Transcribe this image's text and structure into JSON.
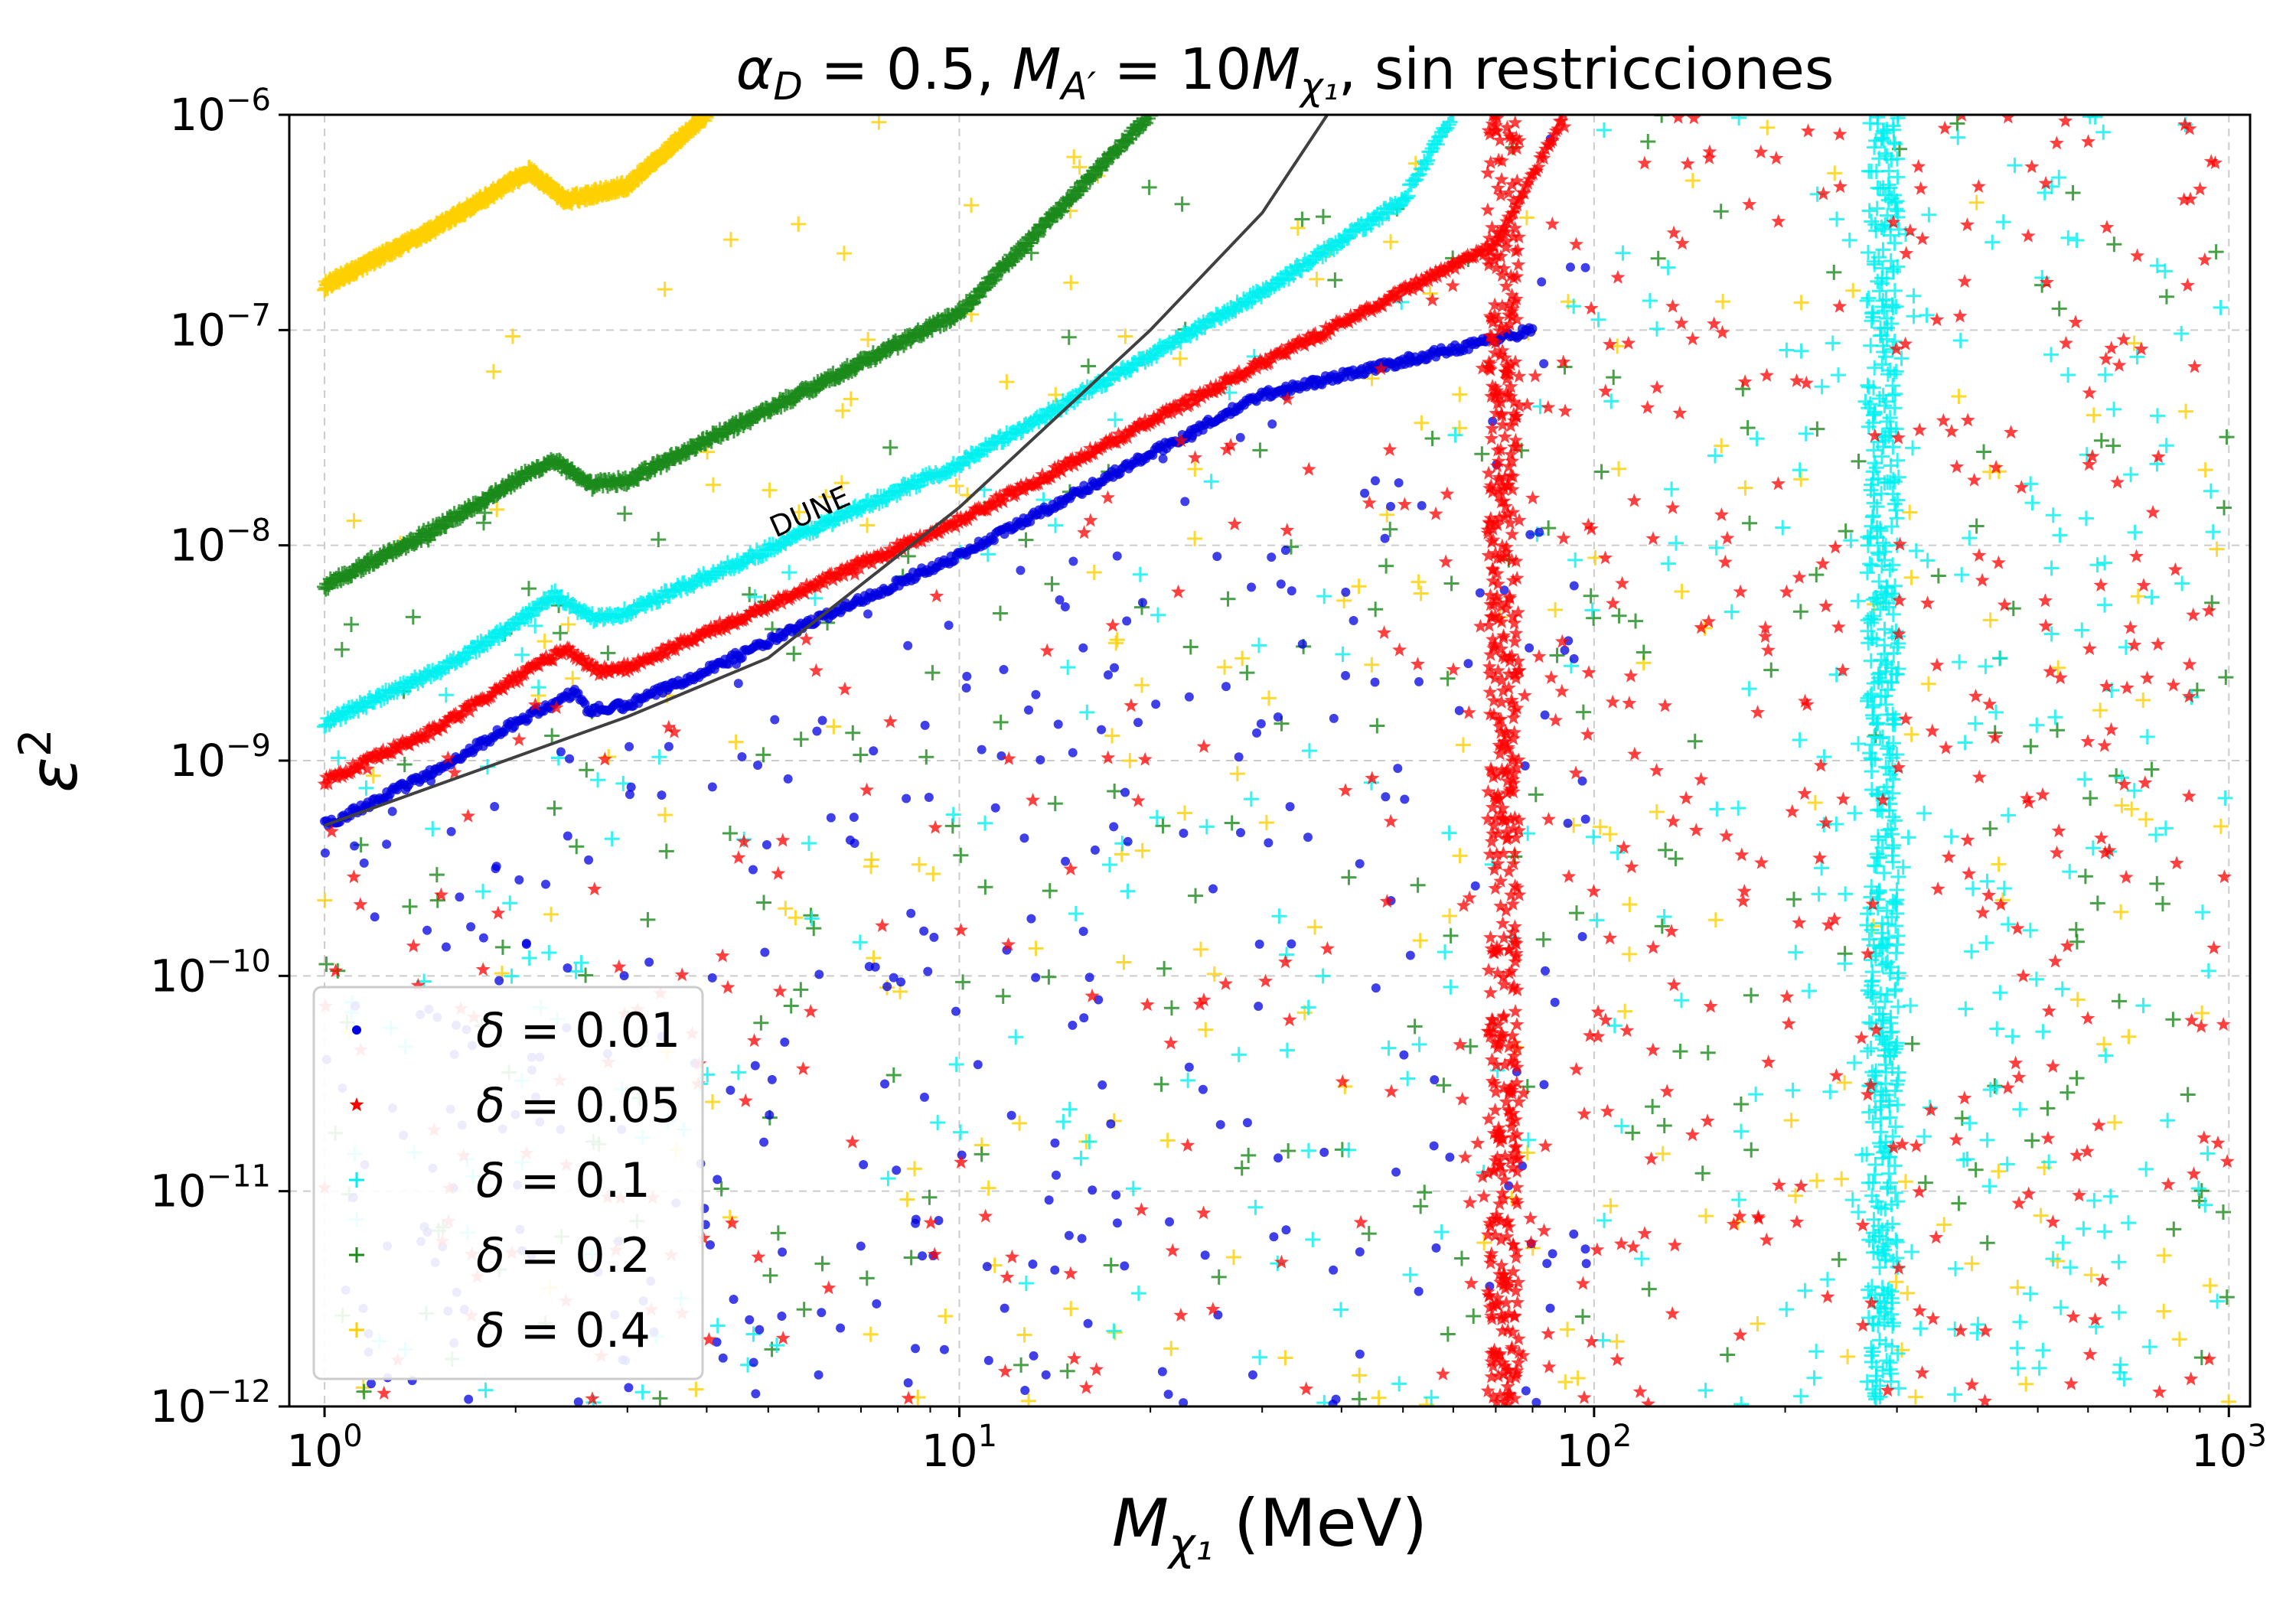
{
  "chart_data": {
    "type": "scatter",
    "title": "α_D = 0.5, M_A′ = 10M_χ₁, sin restricciones",
    "title_parts": {
      "alpha": "α",
      "alpha_sub": "D",
      "eq1": " = 0.5, ",
      "m1": "M",
      "m1_sub": "A′",
      "eq2": " = 10",
      "m2": "M",
      "m2_sub": "χ₁",
      "tail": ", sin restricciones"
    },
    "xlabel": "M_χ₁ (MeV)",
    "xlabel_parts": {
      "m": "M",
      "sub": "χ₁",
      "unit": " (MeV)"
    },
    "ylabel": "ε²",
    "ylabel_parts": {
      "sym": "ε",
      "sup": "2"
    },
    "xscale": "log",
    "yscale": "log",
    "xlim": [
      0.88,
      1080
    ],
    "ylim": [
      1e-12,
      1e-06
    ],
    "x_ticks": [
      {
        "value": 1,
        "base": "10",
        "exp": "0"
      },
      {
        "value": 10,
        "base": "10",
        "exp": "1"
      },
      {
        "value": 100,
        "base": "10",
        "exp": "2"
      },
      {
        "value": 1000,
        "base": "10",
        "exp": "3"
      }
    ],
    "y_ticks": [
      {
        "value": 1e-06,
        "base": "10",
        "exp": "−6"
      },
      {
        "value": 1e-07,
        "base": "10",
        "exp": "−7"
      },
      {
        "value": 1e-08,
        "base": "10",
        "exp": "−8"
      },
      {
        "value": 1e-09,
        "base": "10",
        "exp": "−9"
      },
      {
        "value": 1e-10,
        "base": "10",
        "exp": "−10"
      },
      {
        "value": 1e-11,
        "base": "10",
        "exp": "−11"
      },
      {
        "value": 1e-12,
        "base": "10",
        "exp": "−12"
      }
    ],
    "grid": true,
    "legend_position": "lower-left",
    "series": [
      {
        "name": "δ = 0.01",
        "sym": "δ",
        "val": " = 0.01",
        "marker": "circle",
        "color": "#0000e0",
        "relic_line": [
          [
            1,
            5e-10
          ],
          [
            1.5,
            9e-10
          ],
          [
            2,
            1.5e-09
          ],
          [
            2.5,
            2.1e-09
          ],
          [
            2.6,
            1.7e-09
          ],
          [
            3,
            1.8e-09
          ],
          [
            10,
            9e-09
          ],
          [
            30,
            5e-08
          ],
          [
            80,
            1e-07
          ]
        ],
        "vertical_band_x": null
      },
      {
        "name": "δ = 0.05",
        "sym": "δ",
        "val": " = 0.05",
        "marker": "star",
        "color": "#ff0000",
        "relic_line": [
          [
            1,
            8e-10
          ],
          [
            1.5,
            1.4e-09
          ],
          [
            2,
            2.4e-09
          ],
          [
            2.4,
            3.3e-09
          ],
          [
            2.7,
            2.6e-09
          ],
          [
            3,
            2.7e-09
          ],
          [
            10,
            1.3e-08
          ],
          [
            30,
            7e-08
          ],
          [
            70,
            2.5e-07
          ],
          [
            90,
            1e-06
          ]
        ],
        "vertical_band_x": 72
      },
      {
        "name": "δ = 0.1",
        "sym": "δ",
        "val": " = 0.1",
        "marker": "plus",
        "color": "#00f0f0",
        "relic_line": [
          [
            1,
            1.5e-09
          ],
          [
            1.5,
            2.6e-09
          ],
          [
            2,
            4.3e-09
          ],
          [
            2.3,
            6e-09
          ],
          [
            2.6,
            4.6e-09
          ],
          [
            3,
            4.9e-09
          ],
          [
            10,
            2.4e-08
          ],
          [
            30,
            1.5e-07
          ],
          [
            50,
            4e-07
          ],
          [
            60,
            1e-06
          ]
        ],
        "vertical_band_x": 285
      },
      {
        "name": "δ = 0.2",
        "sym": "δ",
        "val": " = 0.2",
        "marker": "plus",
        "color": "#1a8a1a",
        "relic_line": [
          [
            1,
            6.5e-09
          ],
          [
            1.5,
            1.2e-08
          ],
          [
            2,
            2e-08
          ],
          [
            2.3,
            2.5e-08
          ],
          [
            2.6,
            1.9e-08
          ],
          [
            3,
            2e-08
          ],
          [
            10,
            1.2e-07
          ],
          [
            20,
            1e-06
          ]
        ],
        "vertical_band_x": null
      },
      {
        "name": "δ = 0.4",
        "sym": "δ",
        "val": " = 0.4",
        "marker": "plus",
        "color": "#ffd000",
        "relic_line": [
          [
            1,
            1.6e-07
          ],
          [
            1.5,
            3e-07
          ],
          [
            2,
            5e-07
          ],
          [
            2.1,
            5.5e-07
          ],
          [
            2.4,
            4e-07
          ],
          [
            3,
            4.7e-07
          ],
          [
            4,
            1e-06
          ]
        ],
        "vertical_band_x": null
      }
    ],
    "dune_curve": {
      "label": "DUNE",
      "color": "#404040",
      "points": [
        [
          1,
          5e-10
        ],
        [
          3,
          1.6e-09
        ],
        [
          5,
          3e-09
        ],
        [
          10,
          1.5e-08
        ],
        [
          20,
          1e-07
        ],
        [
          30,
          3.5e-07
        ],
        [
          38,
          1e-06
        ]
      ],
      "label_at": [
        5.9,
        1.3e-08
      ]
    }
  }
}
